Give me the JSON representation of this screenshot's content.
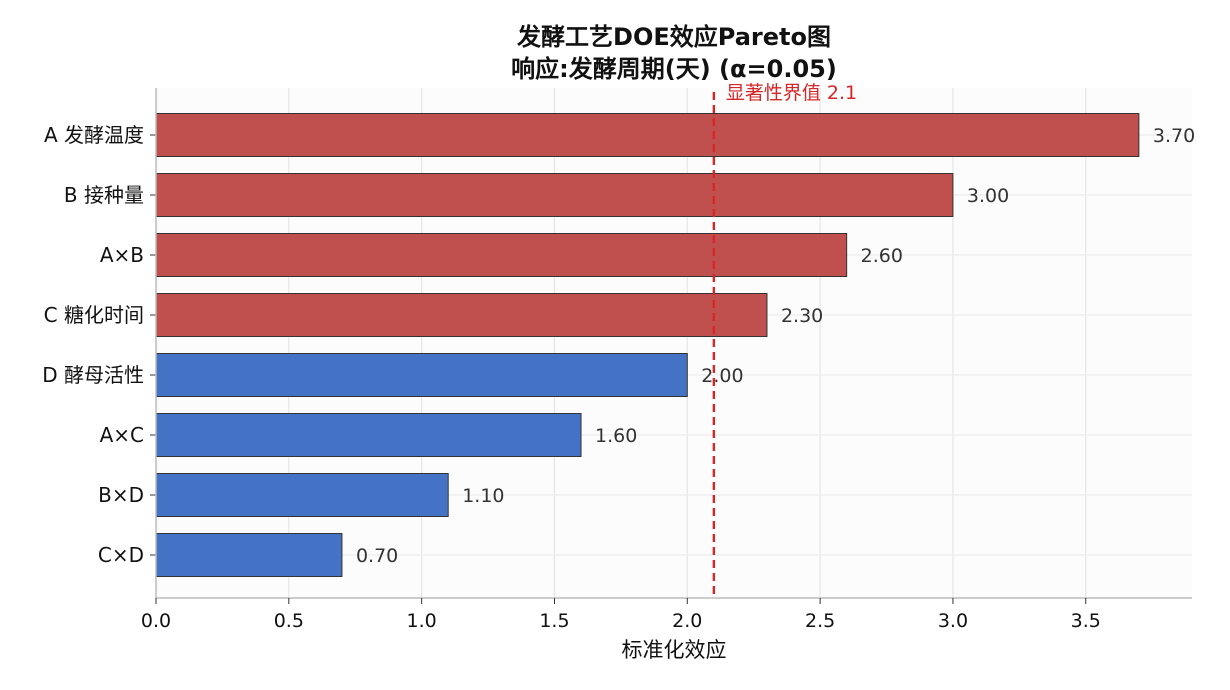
{
  "chart_data": {
    "type": "bar",
    "orientation": "horizontal",
    "title": "发酵工艺DOE效应Pareto图",
    "subtitle": "响应:发酵周期(天)  (α=0.05)",
    "xlabel": "标准化效应",
    "ylabel": "",
    "categories": [
      "A 发酵温度",
      "B 接种量",
      "A×B",
      "C 糖化时间",
      "D 酵母活性",
      "A×C",
      "B×D",
      "C×D"
    ],
    "values": [
      3.7,
      3.0,
      2.6,
      2.3,
      2.0,
      1.6,
      1.1,
      0.7
    ],
    "value_labels": [
      "3.70",
      "3.00",
      "2.60",
      "2.30",
      "2.00",
      "1.60",
      "1.10",
      "0.70"
    ],
    "xlim": [
      0,
      3.9
    ],
    "xticks": [
      0.0,
      0.5,
      1.0,
      1.5,
      2.0,
      2.5,
      3.0,
      3.5
    ],
    "xtick_labels": [
      "0.0",
      "0.5",
      "1.0",
      "1.5",
      "2.0",
      "2.5",
      "3.0",
      "3.5"
    ],
    "threshold": {
      "value": 2.1,
      "label": "显著性界值 2.1",
      "color": "#d62728"
    },
    "colors": {
      "significant": "#c0504d",
      "not_significant": "#4472c4",
      "edge": "#333333"
    },
    "grid": true,
    "legend": "none"
  }
}
